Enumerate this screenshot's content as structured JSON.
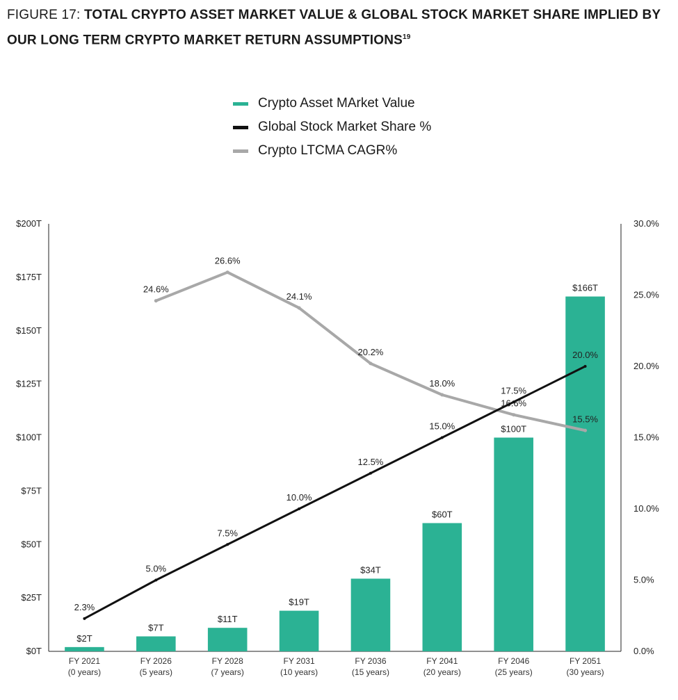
{
  "title": {
    "lead": "FIGURE 17: ",
    "main": "TOTAL CRYPTO ASSET MARKET VALUE & GLOBAL STOCK MARKET SHARE IMPLIED BY OUR LONG TERM CRYPTO MARKET RETURN ASSUMPTIONS",
    "footnote": "19"
  },
  "legend": [
    {
      "label": "Crypto Asset MArket Value",
      "color": "#2bb294"
    },
    {
      "label": "Global Stock Market Share %",
      "color": "#111111"
    },
    {
      "label": "Crypto LTCMA CAGR%",
      "color": "#a8a8a8"
    }
  ],
  "chart_data": {
    "type": "bar",
    "categories": [
      "FY 2021",
      "FY 2026",
      "FY 2028",
      "FY 2031",
      "FY 2036",
      "FY 2041",
      "FY 2046",
      "FY 2051"
    ],
    "category_sub": [
      "(0 years)",
      "(5 years)",
      "(7 years)",
      "(10 years)",
      "(15 years)",
      "(20 years)",
      "(25 years)",
      "(30 years)"
    ],
    "series": [
      {
        "name": "Crypto Asset MArket Value",
        "type": "bar",
        "axis": "left",
        "values": [
          2,
          7,
          11,
          19,
          34,
          60,
          100,
          166
        ],
        "labels": [
          "$2T",
          "$7T",
          "$11T",
          "$19T",
          "$34T",
          "$60T",
          "$100T",
          "$166T"
        ]
      },
      {
        "name": "Global Stock Market Share %",
        "type": "line",
        "axis": "right",
        "values": [
          2.3,
          5.0,
          7.5,
          10.0,
          12.5,
          15.0,
          17.5,
          20.0
        ],
        "labels": [
          "2.3%",
          "5.0%",
          "7.5%",
          "10.0%",
          "12.5%",
          "15.0%",
          "17.5%",
          "20.0%"
        ]
      },
      {
        "name": "Crypto LTCMA CAGR%",
        "type": "line",
        "axis": "right",
        "values": [
          null,
          24.6,
          26.6,
          24.1,
          20.2,
          18.0,
          16.6,
          15.5
        ],
        "labels": [
          "",
          "24.6%",
          "26.6%",
          "24.1%",
          "20.2%",
          "18.0%",
          "16.6%",
          "15.5%"
        ]
      }
    ],
    "y_left": {
      "min": 0,
      "max": 200,
      "ticks": [
        0,
        25,
        50,
        75,
        100,
        125,
        150,
        175,
        200
      ],
      "tick_labels": [
        "$0T",
        "$25T",
        "$50T",
        "$75T",
        "$100T",
        "$125T",
        "$150T",
        "$175T",
        "$200T"
      ]
    },
    "y_right": {
      "min": 0,
      "max": 30,
      "ticks": [
        0,
        5,
        10,
        15,
        20,
        25,
        30
      ],
      "tick_labels": [
        "0.0%",
        "5.0%",
        "10.0%",
        "15.0%",
        "20.0%",
        "25.0%",
        "30.0%"
      ]
    },
    "grid": false
  }
}
